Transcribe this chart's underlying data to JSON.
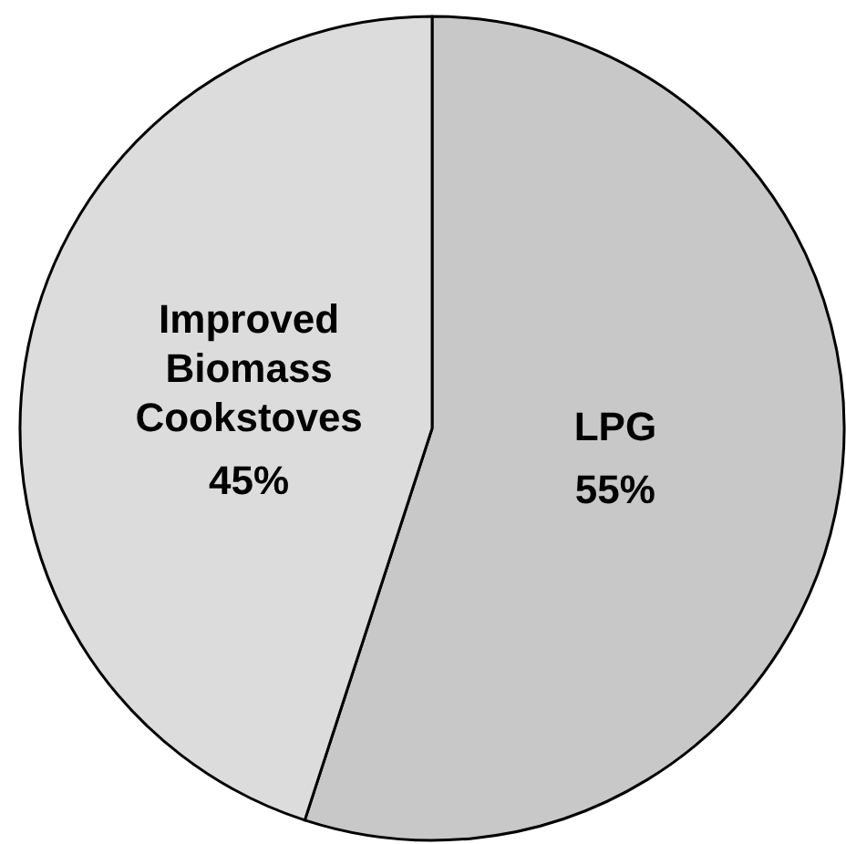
{
  "chart_data": {
    "type": "pie",
    "categories": [
      "LPG",
      "Improved Biomass Cookstoves"
    ],
    "values": [
      55,
      45
    ],
    "colors": [
      "#c8c8c8",
      "#dcdcdc"
    ],
    "value_labels": [
      "55%",
      "45%"
    ]
  }
}
